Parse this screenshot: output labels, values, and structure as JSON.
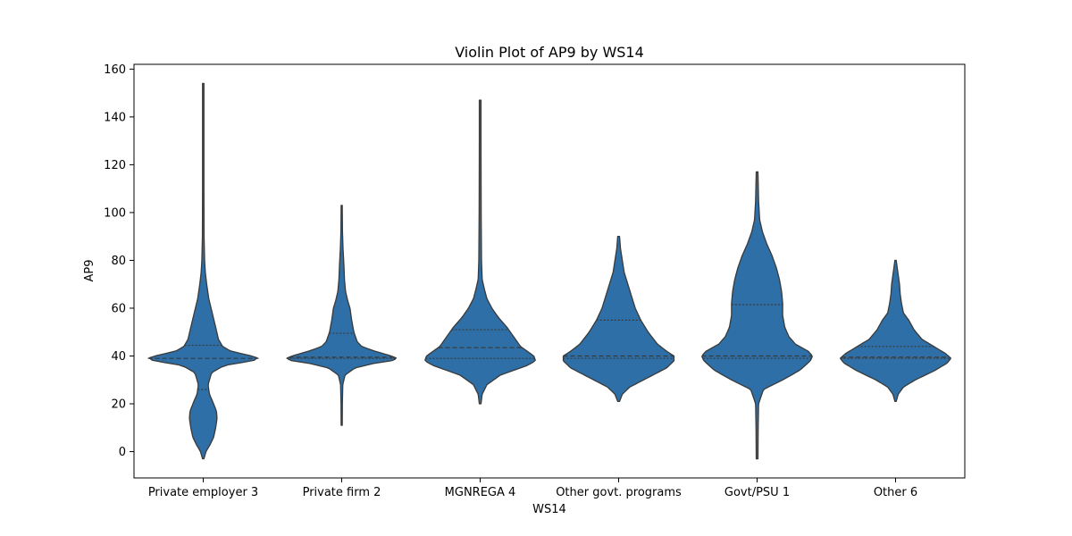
{
  "chart_data": {
    "type": "violin",
    "title": "Violin Plot of AP9 by WS14",
    "xlabel": "WS14",
    "ylabel": "AP9",
    "ylim": [
      -11,
      162
    ],
    "yticks": [
      0,
      20,
      40,
      60,
      80,
      100,
      120,
      140,
      160
    ],
    "grid": false,
    "color": "#2d6fa6",
    "categories": [
      "Private employer 3",
      "Private firm 2",
      "MGNREGA 4",
      "Other govt. programs",
      "Govt/PSU 1",
      "Other 6"
    ],
    "series": [
      {
        "range": [
          -3,
          154
        ],
        "quartiles": [
          26,
          39,
          44.5
        ],
        "profile": [
          [
            -3,
            0.005
          ],
          [
            0,
            0.02
          ],
          [
            3,
            0.05
          ],
          [
            6,
            0.075
          ],
          [
            10,
            0.09
          ],
          [
            14,
            0.1
          ],
          [
            17,
            0.095
          ],
          [
            20,
            0.075
          ],
          [
            24,
            0.045
          ],
          [
            28,
            0.035
          ],
          [
            33,
            0.06
          ],
          [
            36,
            0.15
          ],
          [
            38,
            0.36
          ],
          [
            39,
            0.4
          ],
          [
            40,
            0.35
          ],
          [
            42,
            0.2
          ],
          [
            44,
            0.14
          ],
          [
            47,
            0.11
          ],
          [
            52,
            0.09
          ],
          [
            58,
            0.065
          ],
          [
            64,
            0.04
          ],
          [
            70,
            0.025
          ],
          [
            75,
            0.015
          ],
          [
            80,
            0.01
          ],
          [
            90,
            0.006
          ],
          [
            110,
            0.005
          ],
          [
            140,
            0.005
          ],
          [
            154,
            0.005
          ]
        ]
      },
      {
        "range": [
          11,
          103
        ],
        "quartiles": [
          39,
          39.5,
          49.5
        ],
        "profile": [
          [
            11,
            0.005
          ],
          [
            20,
            0.006
          ],
          [
            28,
            0.01
          ],
          [
            32,
            0.03
          ],
          [
            35,
            0.12
          ],
          [
            37,
            0.3
          ],
          [
            38,
            0.45
          ],
          [
            39,
            0.5
          ],
          [
            40,
            0.45
          ],
          [
            42,
            0.3
          ],
          [
            44,
            0.18
          ],
          [
            46,
            0.14
          ],
          [
            50,
            0.11
          ],
          [
            55,
            0.09
          ],
          [
            60,
            0.075
          ],
          [
            63,
            0.055
          ],
          [
            67,
            0.035
          ],
          [
            72,
            0.025
          ],
          [
            78,
            0.02
          ],
          [
            85,
            0.012
          ],
          [
            92,
            0.007
          ],
          [
            103,
            0.005
          ]
        ]
      },
      {
        "range": [
          20,
          147
        ],
        "quartiles": [
          39,
          43.5,
          51
        ],
        "profile": [
          [
            20,
            0.005
          ],
          [
            24,
            0.012
          ],
          [
            28,
            0.04
          ],
          [
            32,
            0.12
          ],
          [
            36,
            0.28
          ],
          [
            38,
            0.33
          ],
          [
            40,
            0.32
          ],
          [
            42,
            0.28
          ],
          [
            44,
            0.24
          ],
          [
            48,
            0.2
          ],
          [
            52,
            0.16
          ],
          [
            56,
            0.11
          ],
          [
            60,
            0.07
          ],
          [
            64,
            0.04
          ],
          [
            68,
            0.025
          ],
          [
            72,
            0.012
          ],
          [
            80,
            0.008
          ],
          [
            100,
            0.006
          ],
          [
            130,
            0.005
          ],
          [
            147,
            0.005
          ]
        ]
      },
      {
        "range": [
          21,
          90
        ],
        "quartiles": [
          39,
          40,
          55
        ],
        "profile": [
          [
            21,
            0.005
          ],
          [
            24,
            0.02
          ],
          [
            27,
            0.06
          ],
          [
            31,
            0.16
          ],
          [
            35,
            0.26
          ],
          [
            38,
            0.3
          ],
          [
            40,
            0.3
          ],
          [
            42,
            0.26
          ],
          [
            45,
            0.21
          ],
          [
            50,
            0.16
          ],
          [
            55,
            0.12
          ],
          [
            60,
            0.09
          ],
          [
            65,
            0.07
          ],
          [
            70,
            0.05
          ],
          [
            75,
            0.03
          ],
          [
            80,
            0.02
          ],
          [
            85,
            0.01
          ],
          [
            90,
            0.005
          ]
        ]
      },
      {
        "range": [
          -3,
          117
        ],
        "quartiles": [
          39,
          40,
          61.5
        ],
        "profile": [
          [
            -3,
            0.004
          ],
          [
            10,
            0.005
          ],
          [
            20,
            0.007
          ],
          [
            26,
            0.03
          ],
          [
            30,
            0.12
          ],
          [
            34,
            0.2
          ],
          [
            38,
            0.25
          ],
          [
            40,
            0.26
          ],
          [
            42,
            0.24
          ],
          [
            45,
            0.18
          ],
          [
            48,
            0.15
          ],
          [
            52,
            0.13
          ],
          [
            57,
            0.12
          ],
          [
            62,
            0.12
          ],
          [
            67,
            0.115
          ],
          [
            72,
            0.105
          ],
          [
            77,
            0.09
          ],
          [
            82,
            0.07
          ],
          [
            87,
            0.045
          ],
          [
            92,
            0.025
          ],
          [
            97,
            0.012
          ],
          [
            105,
            0.007
          ],
          [
            117,
            0.004
          ]
        ]
      },
      {
        "range": [
          21,
          80
        ],
        "quartiles": [
          39,
          39.5,
          44
        ],
        "profile": [
          [
            21,
            0.005
          ],
          [
            24,
            0.02
          ],
          [
            27,
            0.06
          ],
          [
            30,
            0.15
          ],
          [
            34,
            0.3
          ],
          [
            37,
            0.39
          ],
          [
            39,
            0.42
          ],
          [
            41,
            0.38
          ],
          [
            44,
            0.29
          ],
          [
            47,
            0.2
          ],
          [
            51,
            0.14
          ],
          [
            55,
            0.1
          ],
          [
            58,
            0.06
          ],
          [
            62,
            0.045
          ],
          [
            66,
            0.035
          ],
          [
            70,
            0.03
          ],
          [
            74,
            0.02
          ],
          [
            78,
            0.01
          ],
          [
            80,
            0.005
          ]
        ]
      }
    ]
  }
}
